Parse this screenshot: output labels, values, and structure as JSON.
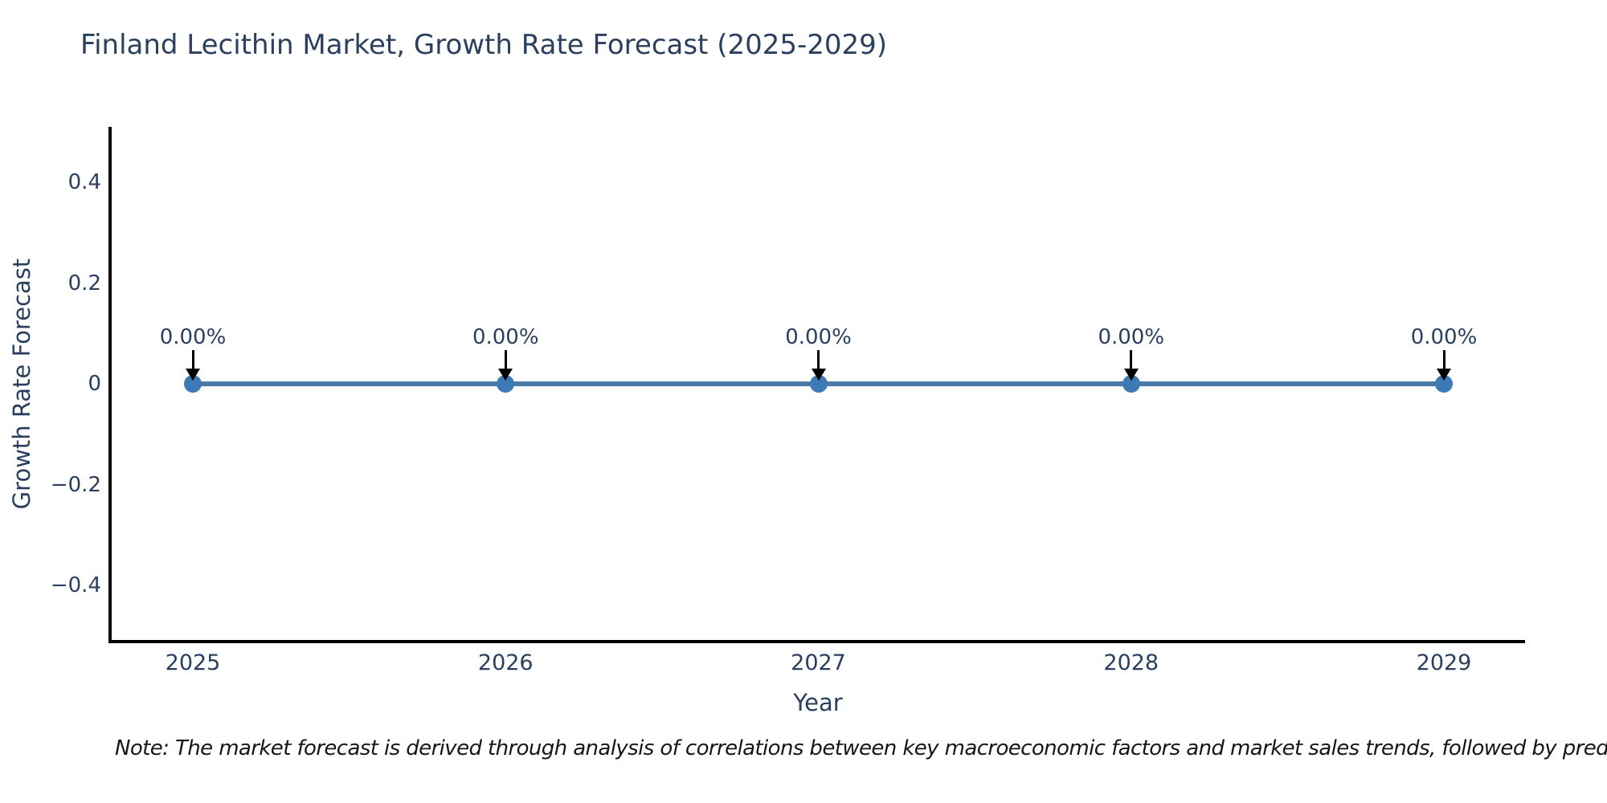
{
  "title": "Finland Lecithin Market, Growth Rate Forecast (2025-2029)",
  "footnote": "Note: The market forecast is derived through analysis of correlations between key macroeconomic factors and market sales trends, followed by predictive modeling to project future sales.",
  "chart_data": {
    "type": "line",
    "title": "Finland Lecithin Market, Growth Rate Forecast (2025-2029)",
    "xlabel": "Year",
    "ylabel": "Growth Rate Forecast",
    "x": [
      2025,
      2026,
      2027,
      2028,
      2029
    ],
    "x_tick_labels": [
      "2025",
      "2026",
      "2027",
      "2028",
      "2029"
    ],
    "series": [
      {
        "name": "Growth Rate Forecast",
        "values": [
          0,
          0,
          0,
          0,
          0
        ],
        "point_labels": [
          "0.00%",
          "0.00%",
          "0.00%",
          "0.00%",
          "0.00%"
        ]
      }
    ],
    "y_ticks": [
      0.4,
      0.2,
      0,
      -0.2,
      -0.4
    ],
    "y_tick_labels": [
      "0.4",
      "0.2",
      "0",
      "−0.2",
      "−0.4"
    ],
    "ylim": [
      -0.52,
      0.56
    ],
    "grid": false,
    "legend": "none",
    "annotations": "downward black arrows from each 0.00% label to its data point",
    "colors": {
      "line": "#4a7ba7",
      "marker": "#3d7ab5",
      "axis": "#000000",
      "tick_text": "#2a3f5f",
      "title_text": "#2b3f5e",
      "note_text": "#161616",
      "background": "#ffffff"
    }
  }
}
